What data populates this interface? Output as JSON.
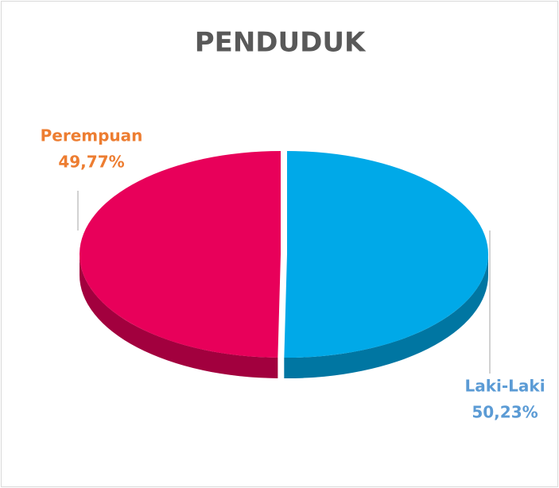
{
  "chart_data": {
    "type": "pie",
    "title": "PENDUDUK",
    "categories": [
      "Laki-Laki",
      "Perempuan"
    ],
    "values": [
      50.23,
      49.77
    ],
    "value_labels": [
      "50,23%",
      "49,77%"
    ],
    "colors": [
      "#00a9e8",
      "#e8005a"
    ],
    "label_colors": [
      "#5b9bd5",
      "#ed7d31"
    ]
  }
}
